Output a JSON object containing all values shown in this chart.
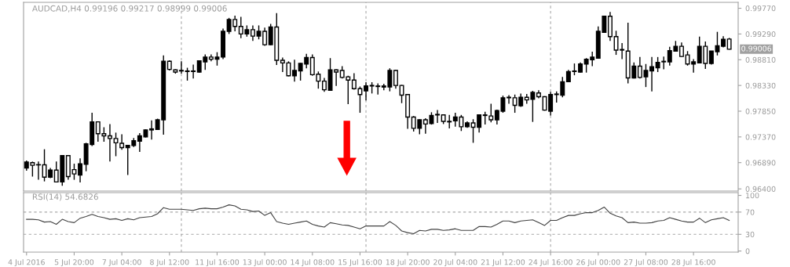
{
  "chart_data": [
    {
      "type": "candlestick",
      "title": "AUDCAD,H4 0.99196 0.99217 0.98999 0.99006",
      "color": "#000000",
      "grid": "x",
      "categories": [
        null,
        null,
        null,
        null,
        null,
        null,
        null,
        null,
        null,
        null,
        null,
        null,
        null,
        null,
        null,
        null,
        null,
        null,
        null,
        null,
        null,
        null,
        null,
        null,
        null,
        null,
        null,
        null,
        null,
        null,
        null,
        null,
        null,
        null,
        null,
        null,
        null,
        null,
        null,
        null,
        null,
        null,
        null,
        null,
        null,
        null,
        null,
        null,
        null,
        null,
        null,
        null,
        null,
        null,
        null,
        null,
        null,
        null,
        null,
        null,
        null,
        null,
        null,
        null,
        null,
        null,
        null,
        null,
        null,
        null,
        null,
        null,
        null,
        null,
        null,
        null,
        null,
        null,
        null,
        null,
        null,
        null,
        null,
        null,
        null,
        null,
        null,
        null,
        null,
        null,
        null,
        null,
        null,
        null,
        null,
        null,
        null,
        null,
        null,
        null,
        null,
        null,
        null,
        null,
        null,
        null,
        null,
        null,
        null,
        null,
        null,
        null,
        null,
        null,
        null,
        null,
        null,
        null,
        null
      ],
      "ohlc": [
        [
          0.9679,
          0.9693,
          0.9674,
          0.969
        ],
        [
          0.9689,
          0.9691,
          0.9663,
          0.9684
        ],
        [
          0.9685,
          0.9691,
          0.9657,
          0.9685
        ],
        [
          0.9685,
          0.9714,
          0.9654,
          0.9662
        ],
        [
          0.9662,
          0.9679,
          0.966,
          0.9675
        ],
        [
          0.9675,
          0.9691,
          0.9652,
          0.9653
        ],
        [
          0.9653,
          0.9703,
          0.9646,
          0.9702
        ],
        [
          0.9702,
          0.9703,
          0.9657,
          0.9663
        ],
        [
          0.9676,
          0.9687,
          0.9657,
          0.9668
        ],
        [
          0.9666,
          0.9697,
          0.9652,
          0.9687
        ],
        [
          0.9686,
          0.9726,
          0.9673,
          0.9724
        ],
        [
          0.9723,
          0.9782,
          0.972,
          0.9765
        ],
        [
          0.9765,
          0.9766,
          0.9728,
          0.9743
        ],
        [
          0.9743,
          0.9755,
          0.9728,
          0.9739
        ],
        [
          0.9739,
          0.9761,
          0.9691,
          0.9734
        ],
        [
          0.9734,
          0.9745,
          0.9701,
          0.9726
        ],
        [
          0.9725,
          0.9742,
          0.9713,
          0.9717
        ],
        [
          0.9717,
          0.9722,
          0.9666,
          0.9721
        ],
        [
          0.9721,
          0.9735,
          0.9718,
          0.973
        ],
        [
          0.9729,
          0.9744,
          0.9709,
          0.9739
        ],
        [
          0.9737,
          0.9751,
          0.9736,
          0.975
        ],
        [
          0.975,
          0.9768,
          0.9732,
          0.9752
        ],
        [
          0.9751,
          0.9771,
          0.975,
          0.9769
        ],
        [
          0.9769,
          0.9889,
          0.9741,
          0.9878
        ],
        [
          0.9878,
          0.988,
          0.9861,
          0.9863
        ],
        [
          0.9862,
          0.9863,
          0.9855,
          0.9858
        ],
        [
          0.986,
          0.9878,
          0.9855,
          0.9861
        ],
        [
          0.986,
          0.9866,
          0.9842,
          0.9859
        ],
        [
          0.9859,
          0.9872,
          0.9846,
          0.986
        ],
        [
          0.9858,
          0.988,
          0.9857,
          0.9879
        ],
        [
          0.9877,
          0.9891,
          0.9862,
          0.9886
        ],
        [
          0.9886,
          0.9891,
          0.9878,
          0.9882
        ],
        [
          0.9882,
          0.9895,
          0.987,
          0.9886
        ],
        [
          0.9886,
          0.9939,
          0.9882,
          0.9934
        ],
        [
          0.9934,
          0.9959,
          0.9929,
          0.9956
        ],
        [
          0.9956,
          0.9963,
          0.9934,
          0.9943
        ],
        [
          0.9943,
          0.9961,
          0.9921,
          0.9929
        ],
        [
          0.9929,
          0.9945,
          0.9924,
          0.9937
        ],
        [
          0.9937,
          0.9945,
          0.9916,
          0.9925
        ],
        [
          0.9925,
          0.9945,
          0.9919,
          0.9934
        ],
        [
          0.9934,
          0.9941,
          0.9907,
          0.9909
        ],
        [
          0.9909,
          0.9948,
          0.9908,
          0.9942
        ],
        [
          0.9942,
          0.9968,
          0.9871,
          0.988
        ],
        [
          0.988,
          0.9885,
          0.9858,
          0.9875
        ],
        [
          0.9875,
          0.9878,
          0.985,
          0.9851
        ],
        [
          0.9851,
          0.9881,
          0.984,
          0.9861
        ],
        [
          0.986,
          0.9875,
          0.9842,
          0.9874
        ],
        [
          0.9873,
          0.9892,
          0.9865,
          0.9885
        ],
        [
          0.9885,
          0.9891,
          0.9851,
          0.9853
        ],
        [
          0.9854,
          0.9859,
          0.9827,
          0.9841
        ],
        [
          0.9841,
          0.9847,
          0.9821,
          0.9825
        ],
        [
          0.9824,
          0.9884,
          0.9823,
          0.9862
        ],
        [
          0.9862,
          0.9863,
          0.9832,
          0.9858
        ],
        [
          0.9861,
          0.9869,
          0.9846,
          0.9848
        ],
        [
          0.9849,
          0.9851,
          0.9798,
          0.9843
        ],
        [
          0.9843,
          0.9856,
          0.9825,
          0.9827
        ],
        [
          0.9827,
          0.9831,
          0.9782,
          0.9816
        ],
        [
          0.9823,
          0.9839,
          0.9805,
          0.9832
        ],
        [
          0.9832,
          0.9839,
          0.9818,
          0.9833
        ],
        [
          0.9831,
          0.9837,
          0.9816,
          0.9832
        ],
        [
          0.983,
          0.9836,
          0.9824,
          0.9832
        ],
        [
          0.983,
          0.9865,
          0.9822,
          0.9861
        ],
        [
          0.9861,
          0.9862,
          0.9827,
          0.9833
        ],
        [
          0.9833,
          0.9834,
          0.98,
          0.9815
        ],
        [
          0.9816,
          0.9817,
          0.9752,
          0.9774
        ],
        [
          0.9774,
          0.9776,
          0.9747,
          0.9753
        ],
        [
          0.9753,
          0.977,
          0.9742,
          0.9769
        ],
        [
          0.9769,
          0.9772,
          0.9743,
          0.9761
        ],
        [
          0.9762,
          0.9783,
          0.976,
          0.9777
        ],
        [
          0.9778,
          0.9787,
          0.9763,
          0.9779
        ],
        [
          0.9778,
          0.9779,
          0.9761,
          0.9766
        ],
        [
          0.9766,
          0.9778,
          0.9753,
          0.9765
        ],
        [
          0.9767,
          0.9782,
          0.9756,
          0.9774
        ],
        [
          0.9774,
          0.9778,
          0.9748,
          0.9756
        ],
        [
          0.9756,
          0.9766,
          0.9754,
          0.9763
        ],
        [
          0.9763,
          0.977,
          0.9726,
          0.9755
        ],
        [
          0.9755,
          0.9779,
          0.9745,
          0.9778
        ],
        [
          0.9777,
          0.9784,
          0.976,
          0.9778
        ],
        [
          0.9776,
          0.9799,
          0.9764,
          0.9769
        ],
        [
          0.9769,
          0.9788,
          0.976,
          0.9786
        ],
        [
          0.9785,
          0.9814,
          0.9782,
          0.981
        ],
        [
          0.981,
          0.9815,
          0.9799,
          0.9811
        ],
        [
          0.981,
          0.9816,
          0.9782,
          0.9796
        ],
        [
          0.9795,
          0.9818,
          0.9793,
          0.9811
        ],
        [
          0.9811,
          0.9817,
          0.9799,
          0.9806
        ],
        [
          0.9807,
          0.9823,
          0.9765,
          0.982
        ],
        [
          0.9819,
          0.9824,
          0.9809,
          0.9812
        ],
        [
          0.9812,
          0.9813,
          0.9786,
          0.9787
        ],
        [
          0.9785,
          0.9821,
          0.9777,
          0.9816
        ],
        [
          0.9816,
          0.9822,
          0.9801,
          0.9817
        ],
        [
          0.9815,
          0.9849,
          0.9811,
          0.984
        ],
        [
          0.984,
          0.9862,
          0.9839,
          0.9859
        ],
        [
          0.9859,
          0.9874,
          0.9852,
          0.986
        ],
        [
          0.9858,
          0.9876,
          0.9857,
          0.9873
        ],
        [
          0.9873,
          0.9884,
          0.9857,
          0.9882
        ],
        [
          0.9881,
          0.9896,
          0.9869,
          0.9886
        ],
        [
          0.9884,
          0.9943,
          0.9883,
          0.9934
        ],
        [
          0.9932,
          0.9963,
          0.9931,
          0.9962
        ],
        [
          0.9962,
          0.997,
          0.9916,
          0.9924
        ],
        [
          0.9924,
          0.9935,
          0.989,
          0.9899
        ],
        [
          0.9899,
          0.9912,
          0.9882,
          0.99
        ],
        [
          0.9897,
          0.995,
          0.9837,
          0.9847
        ],
        [
          0.9847,
          0.9876,
          0.9846,
          0.9869
        ],
        [
          0.9869,
          0.9886,
          0.9846,
          0.9848
        ],
        [
          0.9849,
          0.9873,
          0.983,
          0.9861
        ],
        [
          0.986,
          0.9886,
          0.9822,
          0.9868
        ],
        [
          0.9866,
          0.9886,
          0.9858,
          0.9876
        ],
        [
          0.9877,
          0.9887,
          0.9863,
          0.9878
        ],
        [
          0.9877,
          0.9905,
          0.987,
          0.9898
        ],
        [
          0.9897,
          0.9916,
          0.9896,
          0.9906
        ],
        [
          0.9906,
          0.9913,
          0.9886,
          0.9887
        ],
        [
          0.989,
          0.9897,
          0.987,
          0.9873
        ],
        [
          0.9873,
          0.9882,
          0.9857,
          0.9877
        ],
        [
          0.9875,
          0.9924,
          0.9874,
          0.9906
        ],
        [
          0.9906,
          0.9915,
          0.9864,
          0.9874
        ],
        [
          0.9874,
          0.9897,
          0.9872,
          0.9897
        ],
        [
          0.9896,
          0.9933,
          0.9889,
          0.9907
        ],
        [
          0.9906,
          0.9925,
          0.9904,
          0.9919
        ],
        [
          0.99196,
          0.99217,
          0.98999,
          0.99006
        ]
      ],
      "ylim": [
        0.9636,
        0.9988
      ],
      "yticks": [
        {
          "value": 0.9977,
          "label": "0.99770"
        },
        {
          "value": 0.9929,
          "label": "0.99290"
        },
        {
          "value": 0.9881,
          "label": "0.98810"
        },
        {
          "value": 0.9833,
          "label": "0.98330"
        },
        {
          "value": 0.9785,
          "label": "0.97850"
        },
        {
          "value": 0.9737,
          "label": "0.97370"
        },
        {
          "value": 0.9689,
          "label": "0.96890"
        },
        {
          "value": 0.964,
          "label": "0.96400"
        }
      ],
      "annotations": [
        "0.99006"
      ]
    },
    {
      "type": "line",
      "title": "RSI(14) 54.6826",
      "categories": [
        "4 Jul 2016",
        null,
        null,
        null,
        null,
        null,
        null,
        null,
        "5 Jul 20:00",
        null,
        null,
        null,
        null,
        null,
        null,
        null,
        "7 Jul 04:00",
        null,
        null,
        null,
        null,
        null,
        null,
        null,
        "8 Jul 12:00",
        null,
        null,
        null,
        null,
        null,
        null,
        null,
        "11 Jul 16:00",
        null,
        null,
        null,
        null,
        null,
        null,
        null,
        "13 Jul 00:00",
        null,
        null,
        null,
        null,
        null,
        null,
        null,
        "14 Jul 08:00",
        null,
        null,
        null,
        null,
        null,
        null,
        null,
        "15 Jul 16:00",
        null,
        null,
        null,
        null,
        null,
        null,
        null,
        "18 Jul 20:00",
        null,
        null,
        null,
        null,
        null,
        null,
        null,
        "20 Jul 04:00",
        null,
        null,
        null,
        null,
        null,
        null,
        null,
        "21 Jul 12:00",
        null,
        null,
        null,
        null,
        null,
        null,
        null,
        "24 Jul 16:00",
        null,
        null,
        null,
        null,
        null,
        null,
        null,
        "26 Jul 00:00",
        null,
        null,
        null,
        null,
        null,
        null,
        null,
        "27 Jul 08:00",
        null,
        null,
        null,
        null,
        null,
        null,
        null,
        "28 Jul 16:00",
        null,
        null,
        null,
        null,
        null,
        null
      ],
      "series": [
        {
          "color": "#404040",
          "values": [
            57,
            57,
            56,
            52,
            53,
            48,
            57,
            53,
            51,
            59,
            62,
            66,
            62,
            60,
            57,
            58,
            55,
            58,
            56,
            60,
            61,
            62,
            67,
            78,
            75,
            75,
            75,
            74,
            73,
            76,
            77,
            76,
            76,
            79,
            83,
            81,
            75,
            74,
            71,
            72,
            64,
            69,
            53,
            50,
            48,
            50,
            52,
            54,
            48,
            45,
            43,
            51,
            49,
            47,
            46,
            43,
            40,
            45,
            45,
            45,
            45,
            53,
            46,
            36,
            33,
            31,
            37,
            36,
            39,
            39,
            37,
            38,
            40,
            37,
            37,
            37,
            44,
            44,
            43,
            48,
            54,
            54,
            51,
            54,
            55,
            56,
            51,
            46,
            55,
            55,
            60,
            64,
            64,
            67,
            69,
            69,
            73,
            79,
            68,
            63,
            60,
            51,
            52,
            50,
            50,
            51,
            54,
            55,
            60,
            57,
            54,
            52,
            52,
            59,
            51,
            56,
            58,
            60,
            55
          ]
        }
      ],
      "ylim": [
        -2,
        105
      ],
      "yticks": [
        0,
        30,
        70,
        100
      ],
      "marker": "none",
      "grid": "x",
      "line_style": "solid",
      "ref_lines": [
        {
          "axis": "y",
          "value": 70,
          "color": "#a8a8a8",
          "line_style": "dashed"
        },
        {
          "axis": "y",
          "value": 30,
          "color": "#a8a8a8",
          "line_style": "dashed"
        }
      ]
    }
  ]
}
